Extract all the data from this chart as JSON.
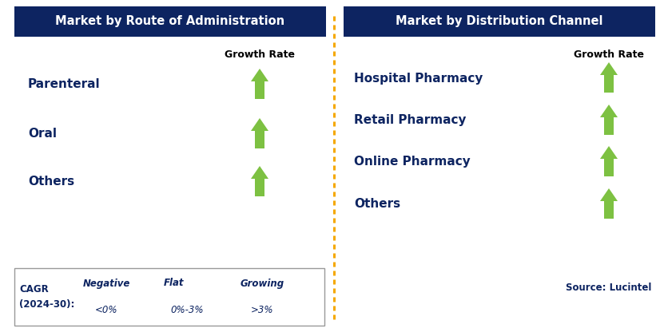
{
  "left_title": "Market by Route of Administration",
  "right_title": "Market by Distribution Channel",
  "left_items": [
    "Parenteral",
    "Oral",
    "Others"
  ],
  "right_items": [
    "Hospital Pharmacy",
    "Retail Pharmacy",
    "Online Pharmacy",
    "Others"
  ],
  "header_bg_color": "#0d2461",
  "header_text_color": "#ffffff",
  "item_text_color": "#0d2461",
  "growth_rate_color": "#000000",
  "green_arrow_color": "#7dc142",
  "red_arrow_color": "#cc0000",
  "yellow_arrow_color": "#f5a800",
  "divider_color": "#f5a800",
  "source_text": "Source: Lucintel",
  "bg_color": "#ffffff",
  "border_color": "#999999",
  "fig_width": 8.37,
  "fig_height": 4.16,
  "dpi": 100
}
